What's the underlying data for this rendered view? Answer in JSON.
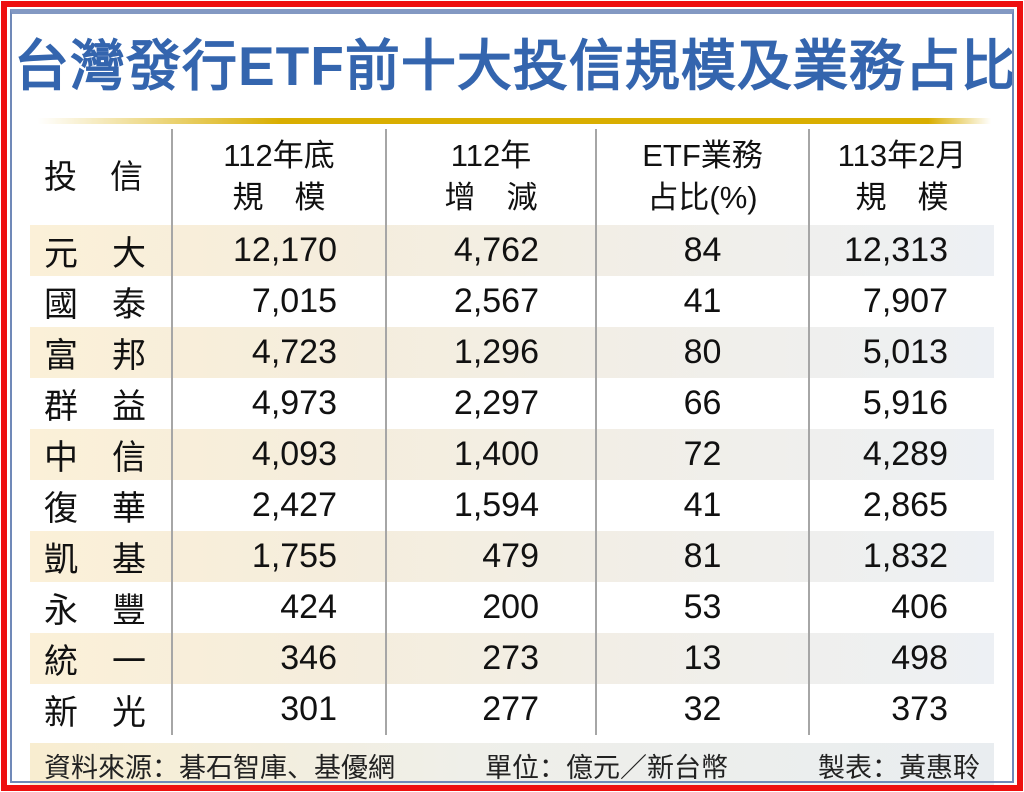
{
  "title": "台灣發行ETF前十大投信規模及業務占比",
  "colors": {
    "frame_red": "#ee0f0f",
    "frame_blue": "#7089b8",
    "title_blue": "#3465ae",
    "gold_bar": "#d9ae00",
    "row_beige": "#fbf0d8",
    "row_bluegray": "#edf0f4",
    "divider_gray": "#a6a6a6"
  },
  "table": {
    "headers": [
      {
        "lines": [
          "投　信"
        ]
      },
      {
        "lines": [
          "112年底",
          "規　模"
        ]
      },
      {
        "lines": [
          "112年",
          "增　減"
        ]
      },
      {
        "lines": [
          "ETF業務",
          "占比(%)"
        ]
      },
      {
        "lines": [
          "113年2月",
          "規　模"
        ]
      }
    ],
    "rows": [
      {
        "cells": [
          "元　大",
          "12,170",
          "4,762",
          "84",
          "12,313"
        ]
      },
      {
        "cells": [
          "國　泰",
          "7,015",
          "2,567",
          "41",
          "7,907"
        ]
      },
      {
        "cells": [
          "富　邦",
          "4,723",
          "1,296",
          "80",
          "5,013"
        ]
      },
      {
        "cells": [
          "群　益",
          "4,973",
          "2,297",
          "66",
          "5,916"
        ]
      },
      {
        "cells": [
          "中　信",
          "4,093",
          "1,400",
          "72",
          "4,289"
        ]
      },
      {
        "cells": [
          "復　華",
          "2,427",
          "1,594",
          "41",
          "2,865"
        ]
      },
      {
        "cells": [
          "凱　基",
          "1,755",
          "479",
          "81",
          "1,832"
        ]
      },
      {
        "cells": [
          "永　豐",
          "424",
          "200",
          "53",
          "406"
        ]
      },
      {
        "cells": [
          "統　一",
          "346",
          "273",
          "13",
          "498"
        ]
      },
      {
        "cells": [
          "新　光",
          "301",
          "277",
          "32",
          "373"
        ]
      }
    ]
  },
  "footer": {
    "source": "資料來源：碁石智庫、基優網",
    "unit": "單位：億元／新台幣",
    "credit": "製表：黃惠聆"
  },
  "chart_data": {
    "type": "table",
    "title": "台灣發行ETF前十大投信規模及業務占比",
    "columns": [
      "投信",
      "112年底規模",
      "112年增減",
      "ETF業務占比(%)",
      "113年2月規模"
    ],
    "rows": [
      [
        "元大",
        12170,
        4762,
        84,
        12313
      ],
      [
        "國泰",
        7015,
        2567,
        41,
        7907
      ],
      [
        "富邦",
        4723,
        1296,
        80,
        5013
      ],
      [
        "群益",
        4973,
        2297,
        66,
        5916
      ],
      [
        "中信",
        4093,
        1400,
        72,
        4289
      ],
      [
        "復華",
        2427,
        1594,
        41,
        2865
      ],
      [
        "凱基",
        1755,
        479,
        81,
        1832
      ],
      [
        "永豐",
        424,
        200,
        53,
        406
      ],
      [
        "統一",
        346,
        273,
        13,
        498
      ],
      [
        "新光",
        301,
        277,
        32,
        373
      ]
    ],
    "notes": [
      "資料來源：碁石智庫、基優網",
      "單位：億元／新台幣",
      "製表：黃惠聆"
    ]
  }
}
